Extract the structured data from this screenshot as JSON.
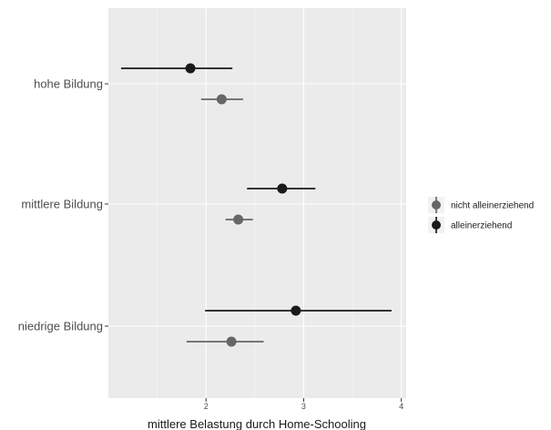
{
  "chart_data": {
    "type": "pointrange",
    "xlabel": "mittlere Belastung durch Home-Schooling",
    "ylabel": "",
    "xlim": [
      1.0,
      4.05
    ],
    "xticks": [
      2,
      3,
      4
    ],
    "grid": true,
    "categories": [
      "hohe Bildung",
      "mittlere Bildung",
      "niedrige Bildung"
    ],
    "legend_position": "right",
    "series": [
      {
        "name": "alleinerziehend",
        "color": "#1a1a1a",
        "values": [
          1.84,
          2.78,
          2.92
        ],
        "lower": [
          1.13,
          2.42,
          1.99
        ],
        "upper": [
          2.27,
          3.12,
          3.9
        ]
      },
      {
        "name": "nicht alleinerziehend",
        "color": "#666666",
        "values": [
          2.16,
          2.33,
          2.26
        ],
        "lower": [
          1.95,
          2.2,
          1.8
        ],
        "upper": [
          2.38,
          2.48,
          2.59
        ]
      }
    ],
    "legend_order": [
      "nicht alleinerziehend",
      "alleinerziehend"
    ]
  }
}
